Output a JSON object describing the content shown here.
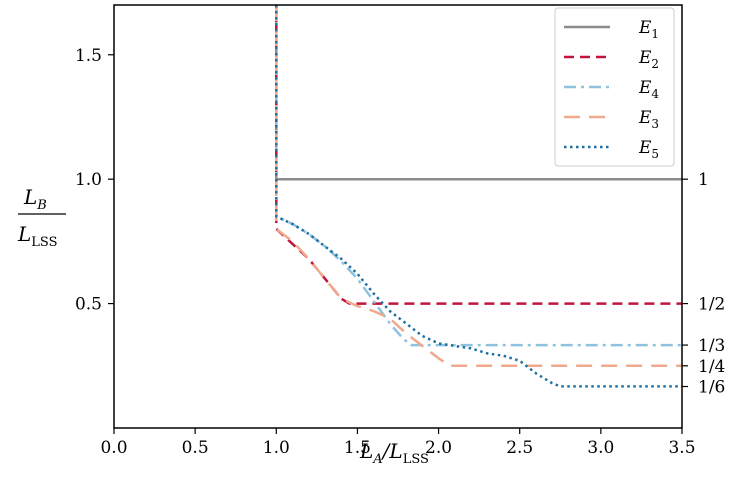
{
  "chart_data": {
    "type": "line",
    "title": "",
    "xlabel": "L_A / L_LSS",
    "ylabel": "L_B / L_LSS",
    "xlim": [
      0.0,
      3.5
    ],
    "ylim": [
      0.0,
      1.7
    ],
    "grid": false,
    "legend_position": "top-right",
    "x_ticks": [
      "0.0",
      "0.5",
      "1.0",
      "1.5",
      "2.0",
      "2.5",
      "3.0",
      "3.5"
    ],
    "y_ticks": [
      "0.5",
      "1.0",
      "1.5"
    ],
    "y_tick_values": [
      0.5,
      1.0,
      1.5
    ],
    "right_labels": [
      {
        "text": "1",
        "y": 1.0
      },
      {
        "text": "1/2",
        "y": 0.5
      },
      {
        "text": "1/3",
        "y": 0.3333
      },
      {
        "text": "1/4",
        "y": 0.25
      },
      {
        "text": "1/6",
        "y": 0.1667
      }
    ],
    "series": [
      {
        "name": "E1",
        "sub": "1",
        "color": "#8c8c8c",
        "dash": "solid",
        "width": 2.5,
        "x": [
          1.0,
          1.0,
          3.5
        ],
        "y": [
          1.7,
          1.0,
          1.0
        ]
      },
      {
        "name": "E2",
        "sub": "2",
        "color": "#c0143c",
        "dash": "dashed",
        "width": 2.5,
        "x": [
          1.0,
          1.0,
          1.1,
          1.2,
          1.3,
          1.4,
          1.45,
          1.6,
          2.0,
          3.5
        ],
        "y": [
          1.7,
          0.8,
          0.74,
          0.68,
          0.6,
          0.52,
          0.5,
          0.5,
          0.5,
          0.5
        ]
      },
      {
        "name": "E4",
        "sub": "4",
        "color": "#8fc3dd",
        "dash": "dashdot",
        "width": 2.5,
        "x": [
          1.0,
          1.0,
          1.1,
          1.2,
          1.3,
          1.4,
          1.5,
          1.6,
          1.7,
          1.78,
          1.83,
          2.0,
          3.5
        ],
        "y": [
          1.7,
          0.85,
          0.82,
          0.78,
          0.73,
          0.67,
          0.6,
          0.51,
          0.42,
          0.36,
          0.333,
          0.333,
          0.333
        ]
      },
      {
        "name": "E3",
        "sub": "3",
        "color": "#f0a98c",
        "dash": "longdash",
        "width": 2.5,
        "x": [
          1.0,
          1.0,
          1.1,
          1.2,
          1.3,
          1.4,
          1.5,
          1.6,
          1.7,
          1.8,
          1.9,
          2.0,
          2.07,
          3.5
        ],
        "y": [
          1.7,
          0.8,
          0.75,
          0.68,
          0.6,
          0.52,
          0.49,
          0.47,
          0.44,
          0.38,
          0.33,
          0.28,
          0.25,
          0.25
        ]
      },
      {
        "name": "E5",
        "sub": "5",
        "color": "#1f6fa3",
        "dash": "dotted",
        "width": 2.5,
        "x": [
          1.0,
          1.0,
          1.1,
          1.2,
          1.3,
          1.4,
          1.5,
          1.6,
          1.7,
          1.8,
          1.9,
          2.0,
          2.1,
          2.2,
          2.3,
          2.4,
          2.5,
          2.6,
          2.7,
          2.75,
          3.5
        ],
        "y": [
          1.7,
          0.85,
          0.82,
          0.78,
          0.73,
          0.68,
          0.62,
          0.54,
          0.47,
          0.42,
          0.37,
          0.34,
          0.33,
          0.32,
          0.3,
          0.29,
          0.27,
          0.22,
          0.18,
          0.167,
          0.167
        ]
      }
    ],
    "legend_order": [
      "E1",
      "E2",
      "E4",
      "E3",
      "E5"
    ]
  }
}
